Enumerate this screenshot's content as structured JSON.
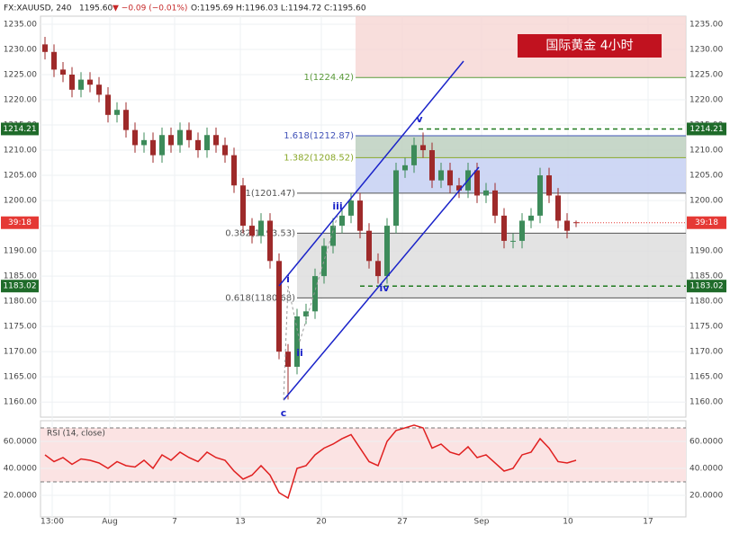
{
  "header": {
    "symbol": "FX:XAUUSD, 240",
    "last": "1195.60",
    "change": "▼ −0.09 (−0.01%)",
    "ohlc": "O:1195.69 H:1196.03 L:1194.72 C:1195.60"
  },
  "chart_data": [
    {
      "type": "candlestick",
      "title": "国际黄金  4小时",
      "xlim": [
        -0.5,
        71.2
      ],
      "xticks": [
        {
          "value": 0.8,
          "label": "13:00"
        },
        {
          "value": 7.2,
          "label": "Aug"
        },
        {
          "value": 14.4,
          "label": "7"
        },
        {
          "value": 21.7,
          "label": "13"
        },
        {
          "value": 30.7,
          "label": "20"
        },
        {
          "value": 39.7,
          "label": "27"
        },
        {
          "value": 48.5,
          "label": "Sep"
        },
        {
          "value": 58.1,
          "label": "10"
        },
        {
          "value": 67,
          "label": "17"
        }
      ],
      "ylim": [
        1157,
        1236.6
      ],
      "yticks": [
        {
          "value": 1160,
          "label": "1160.00"
        },
        {
          "value": 1165,
          "label": "1165.00"
        },
        {
          "value": 1170,
          "label": "1170.00"
        },
        {
          "value": 1175,
          "label": "1175.00"
        },
        {
          "value": 1180,
          "label": "1180.00"
        },
        {
          "value": 1185,
          "label": "1185.00"
        },
        {
          "value": 1190,
          "label": "1190.00"
        },
        {
          "value": 1195,
          "label": "1195.00"
        },
        {
          "value": 1200,
          "label": "1200.00"
        },
        {
          "value": 1205,
          "label": "1205.00"
        },
        {
          "value": 1210,
          "label": "1210.00"
        },
        {
          "value": 1215,
          "label": "1215.00"
        },
        {
          "value": 1220,
          "label": "1220.00"
        },
        {
          "value": 1225,
          "label": "1225.00"
        },
        {
          "value": 1230,
          "label": "1230.00"
        },
        {
          "value": 1235,
          "label": "1235.00"
        }
      ],
      "grid": true,
      "up_color": "#3d8b5a",
      "down_color": "#9e2a2a",
      "open": [
        1231,
        1229.5,
        1226,
        1225,
        1222,
        1224,
        1223,
        1221,
        1217,
        1218,
        1214,
        1211,
        1212,
        1209,
        1213,
        1211,
        1214,
        1212,
        1210,
        1213,
        1211,
        1209,
        1203,
        1195,
        1193,
        1196,
        1188,
        1170,
        1167,
        1177,
        1178,
        1185,
        1191,
        1195,
        1197,
        1200,
        1194,
        1188,
        1185,
        1195,
        1206,
        1207,
        1211,
        1210,
        1204,
        1206,
        1203,
        1202,
        1206,
        1201,
        1202,
        1197,
        1192,
        1192,
        1196,
        1197,
        1205,
        1201,
        1196,
        1195.69
      ],
      "high": [
        1232.5,
        1231,
        1227.5,
        1226.5,
        1225.5,
        1225.5,
        1224.5,
        1222.5,
        1219.5,
        1219.5,
        1215.5,
        1213.5,
        1213.5,
        1214.5,
        1214.5,
        1215.5,
        1215.5,
        1213.5,
        1214.5,
        1214.5,
        1212.5,
        1210.5,
        1204.5,
        1196.5,
        1197.5,
        1197.5,
        1189.5,
        1171.5,
        1178.5,
        1179.5,
        1186.5,
        1192.5,
        1196.5,
        1198.5,
        1201.5,
        1201.5,
        1195.5,
        1189.5,
        1196.5,
        1207.5,
        1208.5,
        1212.5,
        1213.5,
        1211.5,
        1207.5,
        1207.5,
        1204.5,
        1207.5,
        1207.5,
        1203.5,
        1203.5,
        1198.5,
        1193.5,
        1197.5,
        1198.5,
        1206.5,
        1206.5,
        1202.5,
        1197.5,
        1196.03
      ],
      "low": [
        1228,
        1224.5,
        1223.5,
        1220.5,
        1220.5,
        1221.5,
        1219.5,
        1215.5,
        1215.5,
        1212.5,
        1209.5,
        1209.5,
        1207.5,
        1207.5,
        1209.5,
        1209.5,
        1210.5,
        1208.5,
        1208.5,
        1209.5,
        1207.5,
        1201.5,
        1193.5,
        1191.5,
        1191.5,
        1186.5,
        1168.5,
        1160.5,
        1165.5,
        1175.5,
        1176.5,
        1183.5,
        1189.5,
        1193.5,
        1195.5,
        1192.5,
        1186.5,
        1183.5,
        1183.5,
        1193.5,
        1204.5,
        1205.5,
        1208.5,
        1202.5,
        1202.5,
        1201.5,
        1200.5,
        1200.5,
        1199.5,
        1199.5,
        1195.5,
        1190.5,
        1190.5,
        1190.5,
        1194.5,
        1195.5,
        1199.5,
        1194.5,
        1192.5,
        1194.72
      ],
      "close": [
        1229.5,
        1226,
        1225,
        1222,
        1224,
        1223,
        1221,
        1217,
        1218,
        1214,
        1211,
        1212,
        1209,
        1213,
        1211,
        1214,
        1212,
        1210,
        1213,
        1211,
        1209,
        1203,
        1195,
        1193,
        1196,
        1188,
        1170,
        1167,
        1177,
        1178,
        1185,
        1191,
        1195,
        1197,
        1200,
        1194,
        1188,
        1185,
        1195,
        1206,
        1207,
        1211,
        1210,
        1204,
        1206,
        1203,
        1202,
        1206,
        1201,
        1202,
        1197,
        1192,
        1192,
        1196,
        1197,
        1205,
        1201,
        1196,
        1194,
        1195.6
      ],
      "fib_levels": [
        {
          "label": "1(1224.42)",
          "value": 1224.42
        },
        {
          "label": "1.618(1212.87)",
          "value": 1212.87
        },
        {
          "label": "1.382(1208.52)",
          "value": 1208.52
        },
        {
          "label": "1(1201.47)",
          "value": 1201.47
        },
        {
          "label": "0.382(1193.53)",
          "value": 1193.53
        },
        {
          "label": "0.618(1180.68)",
          "value": 1180.68
        }
      ],
      "price_tags": [
        {
          "value": 1214.21,
          "label": "1214.21"
        },
        {
          "value": 1183.02,
          "label": "1183.02"
        }
      ],
      "countdown": "39:18",
      "waves": [
        "i",
        "ii",
        "iii",
        "iv",
        "v",
        "c"
      ]
    },
    {
      "type": "line",
      "title": "RSI (14, close)",
      "color": "#e02020",
      "ylim": [
        4,
        75.3
      ],
      "yticks": [
        {
          "value": 20,
          "label": "20.0000"
        },
        {
          "value": 40,
          "label": "40.0000"
        },
        {
          "value": 60,
          "label": "60.0000"
        }
      ],
      "levels": [
        30,
        70
      ],
      "values": [
        50,
        45,
        48,
        43,
        47,
        46,
        44,
        40,
        45,
        42,
        41,
        46,
        40,
        50,
        46,
        52,
        48,
        45,
        52,
        48,
        46,
        38,
        32,
        35,
        42,
        35,
        22,
        18,
        40,
        42,
        50,
        55,
        58,
        62,
        65,
        55,
        45,
        42,
        60,
        68,
        70,
        72,
        70,
        55,
        58,
        52,
        50,
        56,
        48,
        50,
        44,
        38,
        40,
        50,
        52,
        62,
        55,
        45,
        44,
        46
      ]
    }
  ]
}
